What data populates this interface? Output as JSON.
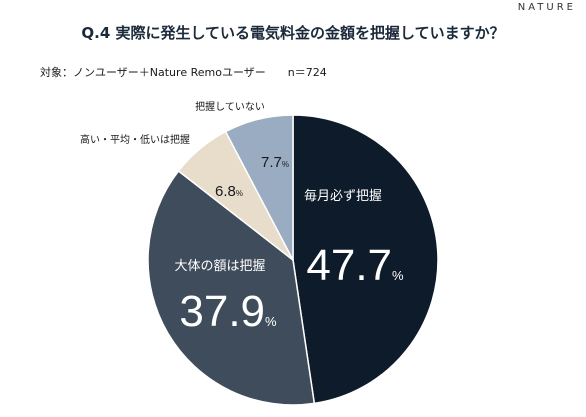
{
  "brand": "NATURE",
  "title": "Q.4 実際に発生している電気料金の金額を把握していますか？",
  "subject": {
    "label": "対象：ノンユーザー＋Nature Remoユーザー",
    "n": "n＝724"
  },
  "colors": {
    "every_month": "#0d1b2a",
    "roughly": "#3f4c5c",
    "level": "#e8dccb",
    "not": "#9aacc1",
    "title": "#1b2a3a"
  },
  "chart_data": {
    "type": "pie",
    "start": "12 o'clock, clockwise",
    "slices": [
      {
        "label": "毎月必ず把握",
        "value": 47.7,
        "display": "47.7",
        "unit": "%",
        "color": "#0d1b2a",
        "label_pos": "inside"
      },
      {
        "label": "大体の額は把握",
        "value": 37.9,
        "display": "37.9",
        "unit": "%",
        "color": "#3f4c5c",
        "label_pos": "inside"
      },
      {
        "label": "高い・平均・低いは把握",
        "value": 6.8,
        "display": "6.8",
        "unit": "%",
        "color": "#e8dccb",
        "label_pos": "outside"
      },
      {
        "label": "把握していない",
        "value": 7.7,
        "display": "7.7",
        "unit": "%",
        "color": "#9aacc1",
        "label_pos": "outside"
      }
    ]
  }
}
